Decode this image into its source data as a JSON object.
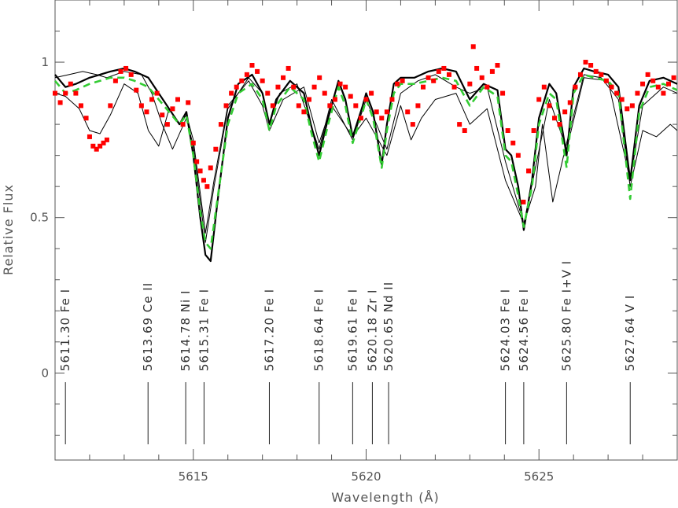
{
  "chart_data": {
    "type": "line",
    "title": "",
    "xlabel": "Wavelength (Å)",
    "ylabel": "Relative Flux",
    "xlim": [
      5611.0,
      5629.0
    ],
    "ylim": [
      -0.28,
      1.2
    ],
    "xticks": [
      5615,
      5620,
      5625
    ],
    "xtick_labels": [
      "5615",
      "5620",
      "5625"
    ],
    "yticks": [
      0,
      0.5,
      1
    ],
    "ytick_labels": [
      "0",
      "0.5",
      "1"
    ],
    "grid": false,
    "legend": "none",
    "line_ids": [
      {
        "wave": 5611.3,
        "label": "5611.30  Fe  I"
      },
      {
        "wave": 5613.69,
        "label": "5613.69  Ce  II"
      },
      {
        "wave": 5614.78,
        "label": "5614.78  Ni  I"
      },
      {
        "wave": 5615.31,
        "label": "5615.31  Fe  I"
      },
      {
        "wave": 5617.2,
        "label": "5617.20  Fe  I"
      },
      {
        "wave": 5618.64,
        "label": "5618.64  Fe  I"
      },
      {
        "wave": 5619.61,
        "label": "5619.61  Fe  I"
      },
      {
        "wave": 5620.18,
        "label": "5620.18  Zr  I"
      },
      {
        "wave": 5620.65,
        "label": "5620.65  Nd  II"
      },
      {
        "wave": 5624.03,
        "label": "5624.03  Fe  I"
      },
      {
        "wave": 5624.56,
        "label": "5624.56  Fe  I"
      },
      {
        "wave": 5625.8,
        "label": "5625.80  Fe  I+V  I"
      },
      {
        "wave": 5627.64,
        "label": "5627.64  V  I"
      }
    ],
    "series": [
      {
        "style": "thick-black",
        "color": "#000000",
        "x": [
          5611.0,
          5611.3,
          5611.6,
          5612.0,
          5612.3,
          5612.6,
          5613.0,
          5613.3,
          5613.7,
          5614.0,
          5614.3,
          5614.6,
          5614.8,
          5615.0,
          5615.2,
          5615.35,
          5615.5,
          5615.7,
          5616.0,
          5616.3,
          5616.7,
          5617.0,
          5617.2,
          5617.4,
          5617.8,
          5618.2,
          5618.4,
          5618.64,
          5618.9,
          5619.2,
          5619.4,
          5619.61,
          5619.9,
          5620.0,
          5620.2,
          5620.45,
          5620.6,
          5620.8,
          5621.0,
          5621.4,
          5621.8,
          5622.2,
          5622.6,
          5623.0,
          5623.4,
          5623.8,
          5624.03,
          5624.2,
          5624.4,
          5624.56,
          5624.8,
          5625.0,
          5625.3,
          5625.5,
          5625.8,
          5626.0,
          5626.3,
          5626.6,
          5627.0,
          5627.3,
          5627.64,
          5627.9,
          5628.2,
          5628.6,
          5629.0
        ],
        "y": [
          0.96,
          0.92,
          0.93,
          0.95,
          0.96,
          0.97,
          0.98,
          0.97,
          0.95,
          0.9,
          0.85,
          0.8,
          0.84,
          0.7,
          0.5,
          0.38,
          0.36,
          0.55,
          0.82,
          0.93,
          0.96,
          0.9,
          0.8,
          0.88,
          0.94,
          0.9,
          0.8,
          0.7,
          0.82,
          0.94,
          0.88,
          0.76,
          0.86,
          0.9,
          0.84,
          0.67,
          0.8,
          0.93,
          0.95,
          0.95,
          0.97,
          0.98,
          0.97,
          0.88,
          0.93,
          0.91,
          0.72,
          0.7,
          0.6,
          0.46,
          0.62,
          0.82,
          0.93,
          0.9,
          0.7,
          0.92,
          0.98,
          0.97,
          0.96,
          0.92,
          0.62,
          0.86,
          0.94,
          0.95,
          0.93
        ]
      },
      {
        "style": "thin-black",
        "color": "#000000",
        "x": [
          5611.0,
          5611.4,
          5611.8,
          5612.2,
          5612.5,
          5613.0,
          5613.5,
          5613.8,
          5614.1,
          5614.4,
          5614.8,
          5615.0,
          5615.35,
          5615.6,
          5616.0,
          5616.6,
          5617.0,
          5617.2,
          5617.5,
          5618.0,
          5618.64,
          5619.0,
          5619.61,
          5620.0,
          5620.6,
          5621.0,
          5621.5,
          5622.0,
          5622.6,
          5623.0,
          5623.5,
          5624.03,
          5624.56,
          5624.9,
          5625.3,
          5625.8,
          5626.3,
          5627.0,
          5627.64,
          5628.0,
          5628.6,
          5629.0
        ],
        "y": [
          0.95,
          0.96,
          0.97,
          0.96,
          0.95,
          0.97,
          0.96,
          0.9,
          0.8,
          0.72,
          0.82,
          0.73,
          0.42,
          0.6,
          0.85,
          0.95,
          0.9,
          0.8,
          0.9,
          0.93,
          0.72,
          0.88,
          0.75,
          0.88,
          0.72,
          0.9,
          0.94,
          0.96,
          0.92,
          0.9,
          0.92,
          0.68,
          0.48,
          0.66,
          0.88,
          0.72,
          0.95,
          0.94,
          0.62,
          0.86,
          0.92,
          0.9
        ]
      },
      {
        "style": "thin-black",
        "color": "#000000",
        "x": [
          5611.0,
          5611.3,
          5611.7,
          5612.0,
          5612.3,
          5612.6,
          5613.0,
          5613.4,
          5613.7,
          5614.0,
          5614.3,
          5614.6,
          5614.8,
          5615.0,
          5615.35,
          5615.6,
          5616.0,
          5616.6,
          5617.0,
          5617.2,
          5617.6,
          5618.2,
          5618.64,
          5619.0,
          5619.61,
          5620.0,
          5620.6,
          5621.0,
          5621.3,
          5621.6,
          5622.0,
          5622.6,
          5623.0,
          5623.5,
          5624.03,
          5624.56,
          5624.9,
          5625.1,
          5625.4,
          5625.8,
          5626.3,
          5626.8,
          5627.3,
          5627.64,
          5628.0,
          5628.4,
          5628.8,
          5629.0
        ],
        "y": [
          0.9,
          0.89,
          0.85,
          0.78,
          0.77,
          0.83,
          0.93,
          0.9,
          0.78,
          0.73,
          0.85,
          0.8,
          0.83,
          0.75,
          0.45,
          0.62,
          0.86,
          0.94,
          0.86,
          0.78,
          0.88,
          0.92,
          0.74,
          0.86,
          0.76,
          0.82,
          0.7,
          0.86,
          0.75,
          0.82,
          0.88,
          0.9,
          0.8,
          0.85,
          0.62,
          0.48,
          0.6,
          0.8,
          0.55,
          0.74,
          0.96,
          0.95,
          0.88,
          0.6,
          0.78,
          0.76,
          0.8,
          0.78
        ]
      },
      {
        "style": "dashed-green",
        "color": "#33cc33",
        "x": [
          5611.0,
          5611.3,
          5611.6,
          5612.0,
          5612.3,
          5612.6,
          5613.0,
          5613.3,
          5613.7,
          5614.0,
          5614.3,
          5614.6,
          5614.8,
          5615.0,
          5615.2,
          5615.35,
          5615.5,
          5615.7,
          5616.0,
          5616.3,
          5616.7,
          5617.0,
          5617.2,
          5617.4,
          5617.8,
          5618.2,
          5618.4,
          5618.64,
          5618.9,
          5619.2,
          5619.4,
          5619.61,
          5619.9,
          5620.0,
          5620.2,
          5620.45,
          5620.6,
          5620.8,
          5621.0,
          5621.4,
          5621.8,
          5622.2,
          5622.6,
          5623.0,
          5623.4,
          5623.8,
          5624.03,
          5624.2,
          5624.4,
          5624.56,
          5624.8,
          5625.0,
          5625.3,
          5625.5,
          5625.8,
          5626.0,
          5626.3,
          5626.6,
          5627.0,
          5627.3,
          5627.64,
          5627.9,
          5628.2,
          5628.6,
          5629.0
        ],
        "y": [
          0.94,
          0.9,
          0.91,
          0.93,
          0.94,
          0.95,
          0.95,
          0.94,
          0.92,
          0.88,
          0.84,
          0.8,
          0.83,
          0.7,
          0.52,
          0.42,
          0.4,
          0.56,
          0.8,
          0.9,
          0.93,
          0.88,
          0.78,
          0.86,
          0.92,
          0.88,
          0.78,
          0.68,
          0.8,
          0.92,
          0.86,
          0.74,
          0.84,
          0.88,
          0.82,
          0.66,
          0.78,
          0.9,
          0.93,
          0.93,
          0.94,
          0.95,
          0.94,
          0.86,
          0.92,
          0.89,
          0.7,
          0.68,
          0.57,
          0.47,
          0.6,
          0.8,
          0.9,
          0.88,
          0.66,
          0.9,
          0.96,
          0.95,
          0.94,
          0.9,
          0.56,
          0.84,
          0.92,
          0.93,
          0.91
        ]
      },
      {
        "style": "red-squares",
        "color": "#ff0000",
        "x": [
          5611.0,
          5611.15,
          5611.3,
          5611.45,
          5611.6,
          5611.75,
          5611.9,
          5612.0,
          5612.1,
          5612.2,
          5612.3,
          5612.4,
          5612.5,
          5612.6,
          5612.75,
          5612.9,
          5613.05,
          5613.2,
          5613.35,
          5613.5,
          5613.65,
          5613.8,
          5613.95,
          5614.1,
          5614.25,
          5614.4,
          5614.55,
          5614.7,
          5614.85,
          5615.0,
          5615.1,
          5615.2,
          5615.3,
          5615.4,
          5615.5,
          5615.65,
          5615.8,
          5615.95,
          5616.1,
          5616.25,
          5616.4,
          5616.55,
          5616.7,
          5616.85,
          5617.0,
          5617.15,
          5617.3,
          5617.45,
          5617.6,
          5617.75,
          5617.9,
          5618.05,
          5618.2,
          5618.35,
          5618.5,
          5618.65,
          5618.8,
          5618.95,
          5619.1,
          5619.25,
          5619.4,
          5619.55,
          5619.7,
          5619.85,
          5620.0,
          5620.15,
          5620.3,
          5620.45,
          5620.6,
          5620.75,
          5620.9,
          5621.05,
          5621.2,
          5621.35,
          5621.5,
          5621.65,
          5621.8,
          5621.95,
          5622.1,
          5622.25,
          5622.4,
          5622.55,
          5622.7,
          5622.85,
          5623.0,
          5623.1,
          5623.2,
          5623.35,
          5623.5,
          5623.65,
          5623.8,
          5623.95,
          5624.1,
          5624.25,
          5624.4,
          5624.55,
          5624.7,
          5624.85,
          5625.0,
          5625.15,
          5625.3,
          5625.45,
          5625.6,
          5625.75,
          5625.9,
          5626.05,
          5626.2,
          5626.35,
          5626.5,
          5626.65,
          5626.8,
          5626.95,
          5627.1,
          5627.25,
          5627.4,
          5627.55,
          5627.7,
          5627.85,
          5628.0,
          5628.15,
          5628.3,
          5628.45,
          5628.6,
          5628.75,
          5628.9
        ],
        "y": [
          0.9,
          0.87,
          0.9,
          0.93,
          0.9,
          0.86,
          0.82,
          0.76,
          0.73,
          0.72,
          0.73,
          0.74,
          0.75,
          0.86,
          0.94,
          0.97,
          0.98,
          0.96,
          0.91,
          0.86,
          0.84,
          0.88,
          0.9,
          0.83,
          0.8,
          0.85,
          0.88,
          0.8,
          0.87,
          0.74,
          0.68,
          0.65,
          0.62,
          0.6,
          0.66,
          0.72,
          0.8,
          0.86,
          0.9,
          0.92,
          0.94,
          0.96,
          0.99,
          0.97,
          0.94,
          0.9,
          0.86,
          0.92,
          0.95,
          0.98,
          0.92,
          0.86,
          0.84,
          0.88,
          0.92,
          0.95,
          0.9,
          0.86,
          0.88,
          0.93,
          0.92,
          0.89,
          0.86,
          0.82,
          0.88,
          0.9,
          0.84,
          0.82,
          0.84,
          0.88,
          0.93,
          0.94,
          0.84,
          0.8,
          0.86,
          0.92,
          0.95,
          0.94,
          0.97,
          0.98,
          0.96,
          0.92,
          0.8,
          0.78,
          0.93,
          1.05,
          0.98,
          0.95,
          0.92,
          0.97,
          0.99,
          0.9,
          0.78,
          0.74,
          0.7,
          0.55,
          0.65,
          0.78,
          0.88,
          0.92,
          0.86,
          0.82,
          0.8,
          0.84,
          0.87,
          0.92,
          0.96,
          1.0,
          0.99,
          0.97,
          0.96,
          0.94,
          0.92,
          0.9,
          0.88,
          0.85,
          0.86,
          0.9,
          0.93,
          0.96,
          0.94,
          0.92,
          0.9,
          0.93,
          0.95
        ]
      }
    ]
  }
}
